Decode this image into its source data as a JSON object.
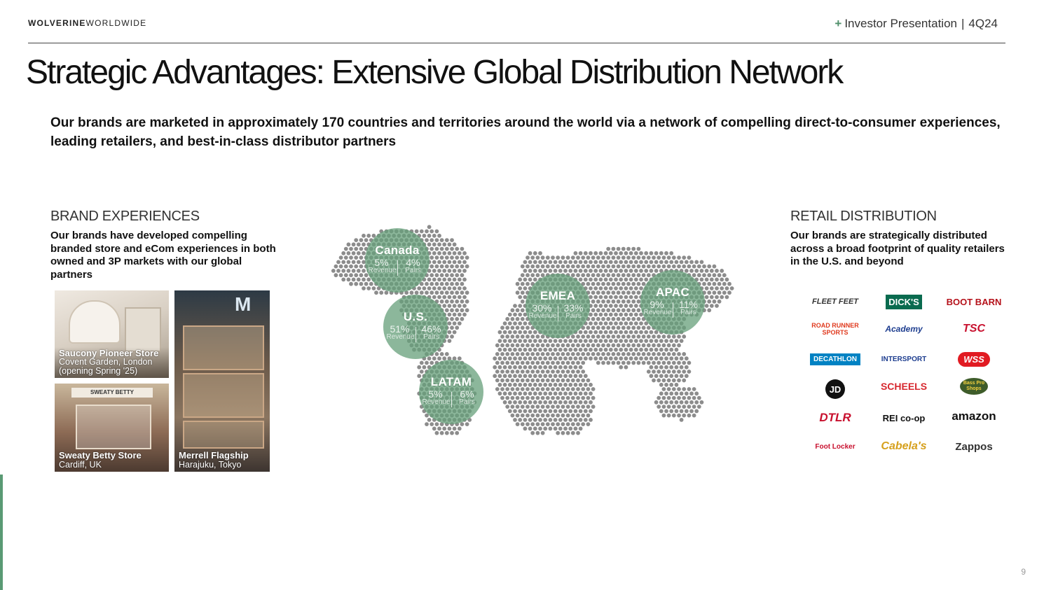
{
  "header": {
    "logo_bold": "WOLVERINE",
    "logo_light": "WORLDWIDE",
    "plus": "+",
    "presentation": "Investor Presentation",
    "separator": "|",
    "quarter": "4Q24"
  },
  "title": "Strategic Advantages: Extensive Global Distribution Network",
  "intro": "Our brands are marketed in approximately 170 countries and territories around the world via a network of compelling direct-to-consumer experiences, leading retailers, and best-in-class distributor partners",
  "brand_experiences": {
    "heading": "BRAND EXPERIENCES",
    "body": "Our brands have developed compelling branded store and eCom experiences in both owned and 3P markets with our global partners",
    "photos": [
      {
        "name": "Saucony Pioneer Store",
        "location": "Covent Garden, London (opening Spring '25)"
      },
      {
        "name": "Sweaty Betty Store",
        "location": "Cardiff, UK",
        "sign": "SWEATY BETTY"
      },
      {
        "name": "Merrell Flagship",
        "location": "Harajuku, Tokyo",
        "sign": "M"
      }
    ]
  },
  "regions": [
    {
      "name": "Canada",
      "revenue": "5%",
      "pairs": "4%"
    },
    {
      "name": "U.S.",
      "revenue": "51%",
      "pairs": "46%"
    },
    {
      "name": "LATAM",
      "revenue": "5%",
      "pairs": "6%"
    },
    {
      "name": "EMEA",
      "revenue": "30%",
      "pairs": "33%"
    },
    {
      "name": "APAC",
      "revenue": "9%",
      "pairs": "11%"
    }
  ],
  "labels": {
    "revenue": "Revenue",
    "pairs": "Pairs"
  },
  "retail_distribution": {
    "heading": "RETAIL DISTRIBUTION",
    "body": "Our brands are strategically distributed across a broad footprint of quality retailers in the U.S. and beyond",
    "retailers": [
      "FLEET FEET",
      "DICK'S",
      "BOOT BARN",
      "ROAD RUNNER SPORTS",
      "Academy",
      "TSC",
      "DECATHLON",
      "INTERSPORT",
      "WSS",
      "JD",
      "SCHEELS",
      "Bass Pro Shops",
      "DTLR",
      "REI co-op",
      "amazon",
      "Foot Locker",
      "Cabela's",
      "Zappos"
    ]
  },
  "page_number": "9",
  "colors": {
    "accent": "#659f7a",
    "map_dots": "#8c8c8c",
    "text": "#111111"
  }
}
